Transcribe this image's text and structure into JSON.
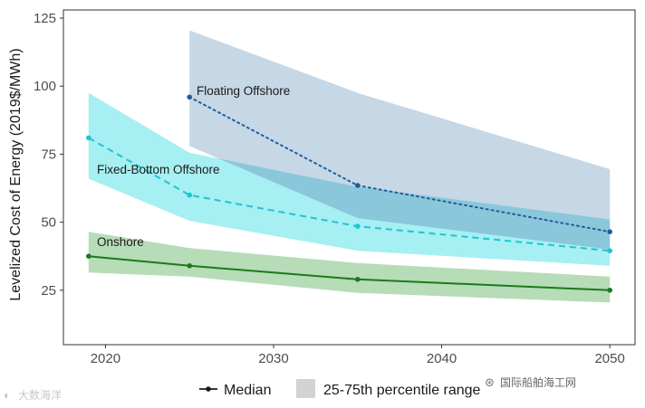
{
  "chart_data": {
    "type": "line",
    "ylabel": "Levelized Cost of Energy (2019$/MWh)",
    "xlabel": "",
    "xlim": [
      2017.5,
      2051.5
    ],
    "ylim": [
      5,
      128
    ],
    "x_ticks": [
      2020,
      2030,
      2040,
      2050
    ],
    "y_ticks": [
      25,
      50,
      75,
      100,
      125
    ],
    "series": [
      {
        "name": "Floating Offshore",
        "color": "#1f5f99",
        "band_color": "#c6d7e6",
        "line_style": "dotted",
        "x": [
          2025,
          2035,
          2050
        ],
        "median": [
          96,
          63.5,
          46.5
        ],
        "p25": [
          78,
          51.5,
          40
        ],
        "p75": [
          120.5,
          97.5,
          69.5
        ]
      },
      {
        "name": "Fixed-Bottom Offshore",
        "color": "#1ec5d4",
        "band_color": "#a6eff2",
        "line_style": "dashed",
        "x": [
          2019,
          2025,
          2035,
          2050
        ],
        "median": [
          81,
          60,
          48.5,
          39.5
        ],
        "p25": [
          66,
          50.5,
          39.5,
          34
        ],
        "p75": [
          97.5,
          75.5,
          63,
          51
        ]
      },
      {
        "name": "Onshore",
        "color": "#1b7a1b",
        "band_color": "#b6dcb8",
        "line_style": "solid",
        "x": [
          2019,
          2025,
          2035,
          2050
        ],
        "median": [
          37.5,
          34,
          29,
          25
        ],
        "p25": [
          31.5,
          30,
          24,
          20.5
        ],
        "p75": [
          46.5,
          40.5,
          35,
          30
        ]
      }
    ],
    "overlap_band_color": "#8bc7db",
    "legend": {
      "position": "bottom",
      "items": [
        {
          "label": "Median",
          "kind": "line-point"
        },
        {
          "label": "25-75th percentile range",
          "kind": "band",
          "color": "#d3d3d3"
        }
      ]
    }
  },
  "watermarks": {
    "left": "大数海洋",
    "right": "国际船舶海工网"
  }
}
